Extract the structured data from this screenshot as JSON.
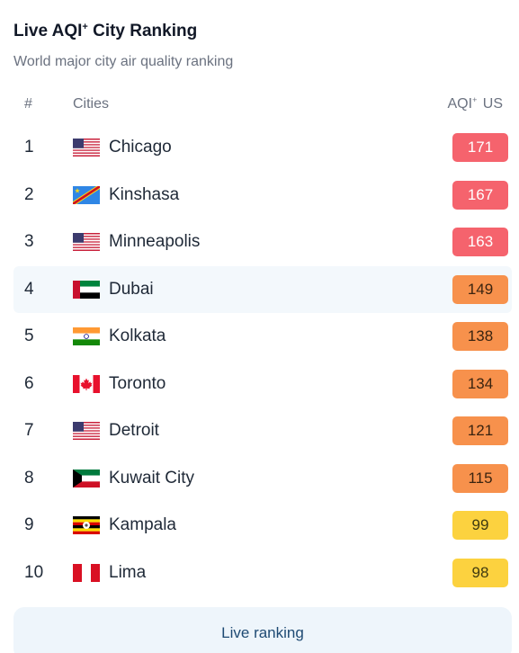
{
  "header": {
    "title_main": "Live AQI",
    "title_sup": "+",
    "title_tail": " City Ranking",
    "subtitle": "World major city air quality ranking"
  },
  "columns": {
    "rank": "#",
    "city": "Cities",
    "aqi_main": "AQI",
    "aqi_sup": "+",
    "aqi_tail": " US"
  },
  "rows": [
    {
      "rank": "1",
      "city": "Chicago",
      "aqi": "171",
      "level": "red",
      "flag": "us"
    },
    {
      "rank": "2",
      "city": "Kinshasa",
      "aqi": "167",
      "level": "red",
      "flag": "cd"
    },
    {
      "rank": "3",
      "city": "Minneapolis",
      "aqi": "163",
      "level": "red",
      "flag": "us"
    },
    {
      "rank": "4",
      "city": "Dubai",
      "aqi": "149",
      "level": "orange",
      "flag": "ae"
    },
    {
      "rank": "5",
      "city": "Kolkata",
      "aqi": "138",
      "level": "orange",
      "flag": "in"
    },
    {
      "rank": "6",
      "city": "Toronto",
      "aqi": "134",
      "level": "orange",
      "flag": "ca"
    },
    {
      "rank": "7",
      "city": "Detroit",
      "aqi": "121",
      "level": "orange",
      "flag": "us"
    },
    {
      "rank": "8",
      "city": "Kuwait City",
      "aqi": "115",
      "level": "orange",
      "flag": "kw"
    },
    {
      "rank": "9",
      "city": "Kampala",
      "aqi": "99",
      "level": "yellow",
      "flag": "ug"
    },
    {
      "rank": "10",
      "city": "Lima",
      "aqi": "98",
      "level": "yellow",
      "flag": "pe"
    }
  ],
  "highlighted_rank": "4",
  "colors": {
    "red": "#f5636d",
    "orange": "#f7914c",
    "yellow": "#fcd23f",
    "highlight_row": "#f3f8fc",
    "button_bg": "#eef5fb",
    "button_text": "#1e4a73"
  },
  "footer": {
    "live_ranking_label": "Live ranking"
  }
}
